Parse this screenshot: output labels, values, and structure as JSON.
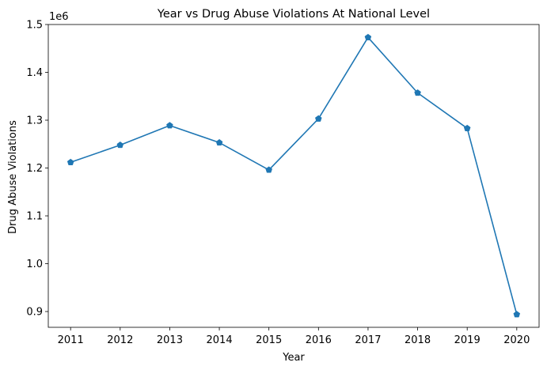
{
  "chart_data": {
    "type": "line",
    "title": "Year vs Drug Abuse Violations At National Level",
    "xlabel": "Year",
    "ylabel": "Drug Abuse Violations",
    "y_offset_label": "1e6",
    "x": [
      "2011",
      "2012",
      "2013",
      "2014",
      "2015",
      "2016",
      "2017",
      "2018",
      "2019",
      "2020"
    ],
    "series": [
      {
        "values": [
          1212000,
          1248000,
          1289000,
          1253000,
          1196000,
          1303000,
          1473000,
          1357000,
          1283000,
          894000
        ],
        "color": "#1f77b4",
        "marker": "pentagon"
      }
    ],
    "ylim": [
      0.867,
      1.5
    ],
    "y_scale_divisor": 1000000,
    "y_ticks": [
      "0.9",
      "1.0",
      "1.1",
      "1.2",
      "1.3",
      "1.4",
      "1.5"
    ],
    "y_tick_values": [
      0.9,
      1.0,
      1.1,
      1.2,
      1.3,
      1.4,
      1.5
    ],
    "grid": false,
    "legend": false
  }
}
